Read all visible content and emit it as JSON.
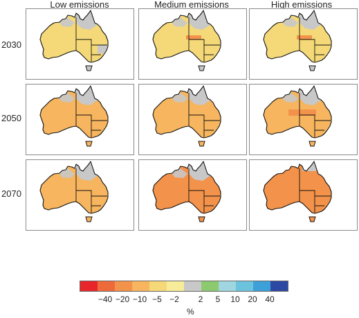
{
  "columns": [
    "Low emissions",
    "Medium emissions",
    "High emissions"
  ],
  "rows": [
    "2030",
    "2050",
    "2070"
  ],
  "legend": {
    "colors": [
      "#e8252a",
      "#ee6a3a",
      "#f3924a",
      "#f6b55e",
      "#f5d978",
      "#f7ec99",
      "#c8c8c8",
      "#8cc96f",
      "#9fd6df",
      "#6cc3dd",
      "#3ea0d9",
      "#2e49a3"
    ],
    "tick_labels": [
      "−40",
      "−20",
      "−10",
      "−5",
      "−2",
      "2",
      "5",
      "10",
      "20",
      "40"
    ],
    "unit": "%"
  },
  "panels": [
    {
      "row": "2030",
      "column": "Low emissions",
      "dominant_class": "-5 to -2",
      "features": [
        "grey north",
        "grey south-east"
      ]
    },
    {
      "row": "2030",
      "column": "Medium emissions",
      "dominant_class": "-5 to -2",
      "features": [
        "grey north",
        "orange central patch"
      ]
    },
    {
      "row": "2030",
      "column": "High emissions",
      "dominant_class": "-5 to -2",
      "features": [
        "grey north",
        "orange central patch"
      ]
    },
    {
      "row": "2050",
      "column": "Low emissions",
      "dominant_class": "-10 to -5",
      "features": [
        "grey north"
      ]
    },
    {
      "row": "2050",
      "column": "Medium emissions",
      "dominant_class": "-10 to -5",
      "features": [
        "grey north"
      ]
    },
    {
      "row": "2050",
      "column": "High emissions",
      "dominant_class": "-10 to -5",
      "features": [
        "grey north",
        "orange central band"
      ]
    },
    {
      "row": "2070",
      "column": "Low emissions",
      "dominant_class": "-10 to -5",
      "features": [
        "grey north"
      ]
    },
    {
      "row": "2070",
      "column": "Medium emissions",
      "dominant_class": "-20 to -10",
      "features": [
        "grey north"
      ]
    },
    {
      "row": "2070",
      "column": "High emissions",
      "dominant_class": "-20 to -10",
      "features": [
        "grey top end"
      ]
    }
  ]
}
